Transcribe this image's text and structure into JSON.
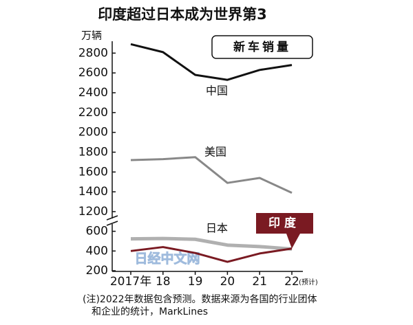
{
  "chart_data": {
    "type": "line",
    "title": "印度超过日本成为世界第3",
    "unit": "万辆",
    "subtitle": "新车销量",
    "categories": [
      "2017年",
      "18",
      "19",
      "20",
      "21",
      "22"
    ],
    "last_category_note": "(预计)",
    "ylim": [
      1200,
      2920
    ],
    "yticks": [
      1200,
      1400,
      1600,
      1800,
      2000,
      2200,
      2400,
      2600,
      2800
    ],
    "y2lim": [
      200,
      660
    ],
    "y2ticks": [
      200,
      400,
      600
    ],
    "series": [
      {
        "name": "中国",
        "color": "#111111",
        "values": [
          2890,
          2810,
          2580,
          2530,
          2630,
          2680
        ]
      },
      {
        "name": "美国",
        "color": "#888888",
        "values": [
          1720,
          1730,
          1750,
          1490,
          1540,
          1390
        ]
      },
      {
        "name": "日本",
        "color": "#b0b0b0",
        "axis": "y2",
        "values": [
          523,
          527,
          519,
          460,
          445,
          420
        ]
      },
      {
        "name": "印度",
        "color": "#7a1a22",
        "axis": "y2",
        "values": [
          400,
          440,
          380,
          290,
          375,
          425
        ]
      }
    ],
    "watermark": "日经中文网",
    "notes": [
      "(注)2022年数据包含预测。数据来源为各国的行业团体",
      "和企业的统计，MarkLines"
    ]
  }
}
